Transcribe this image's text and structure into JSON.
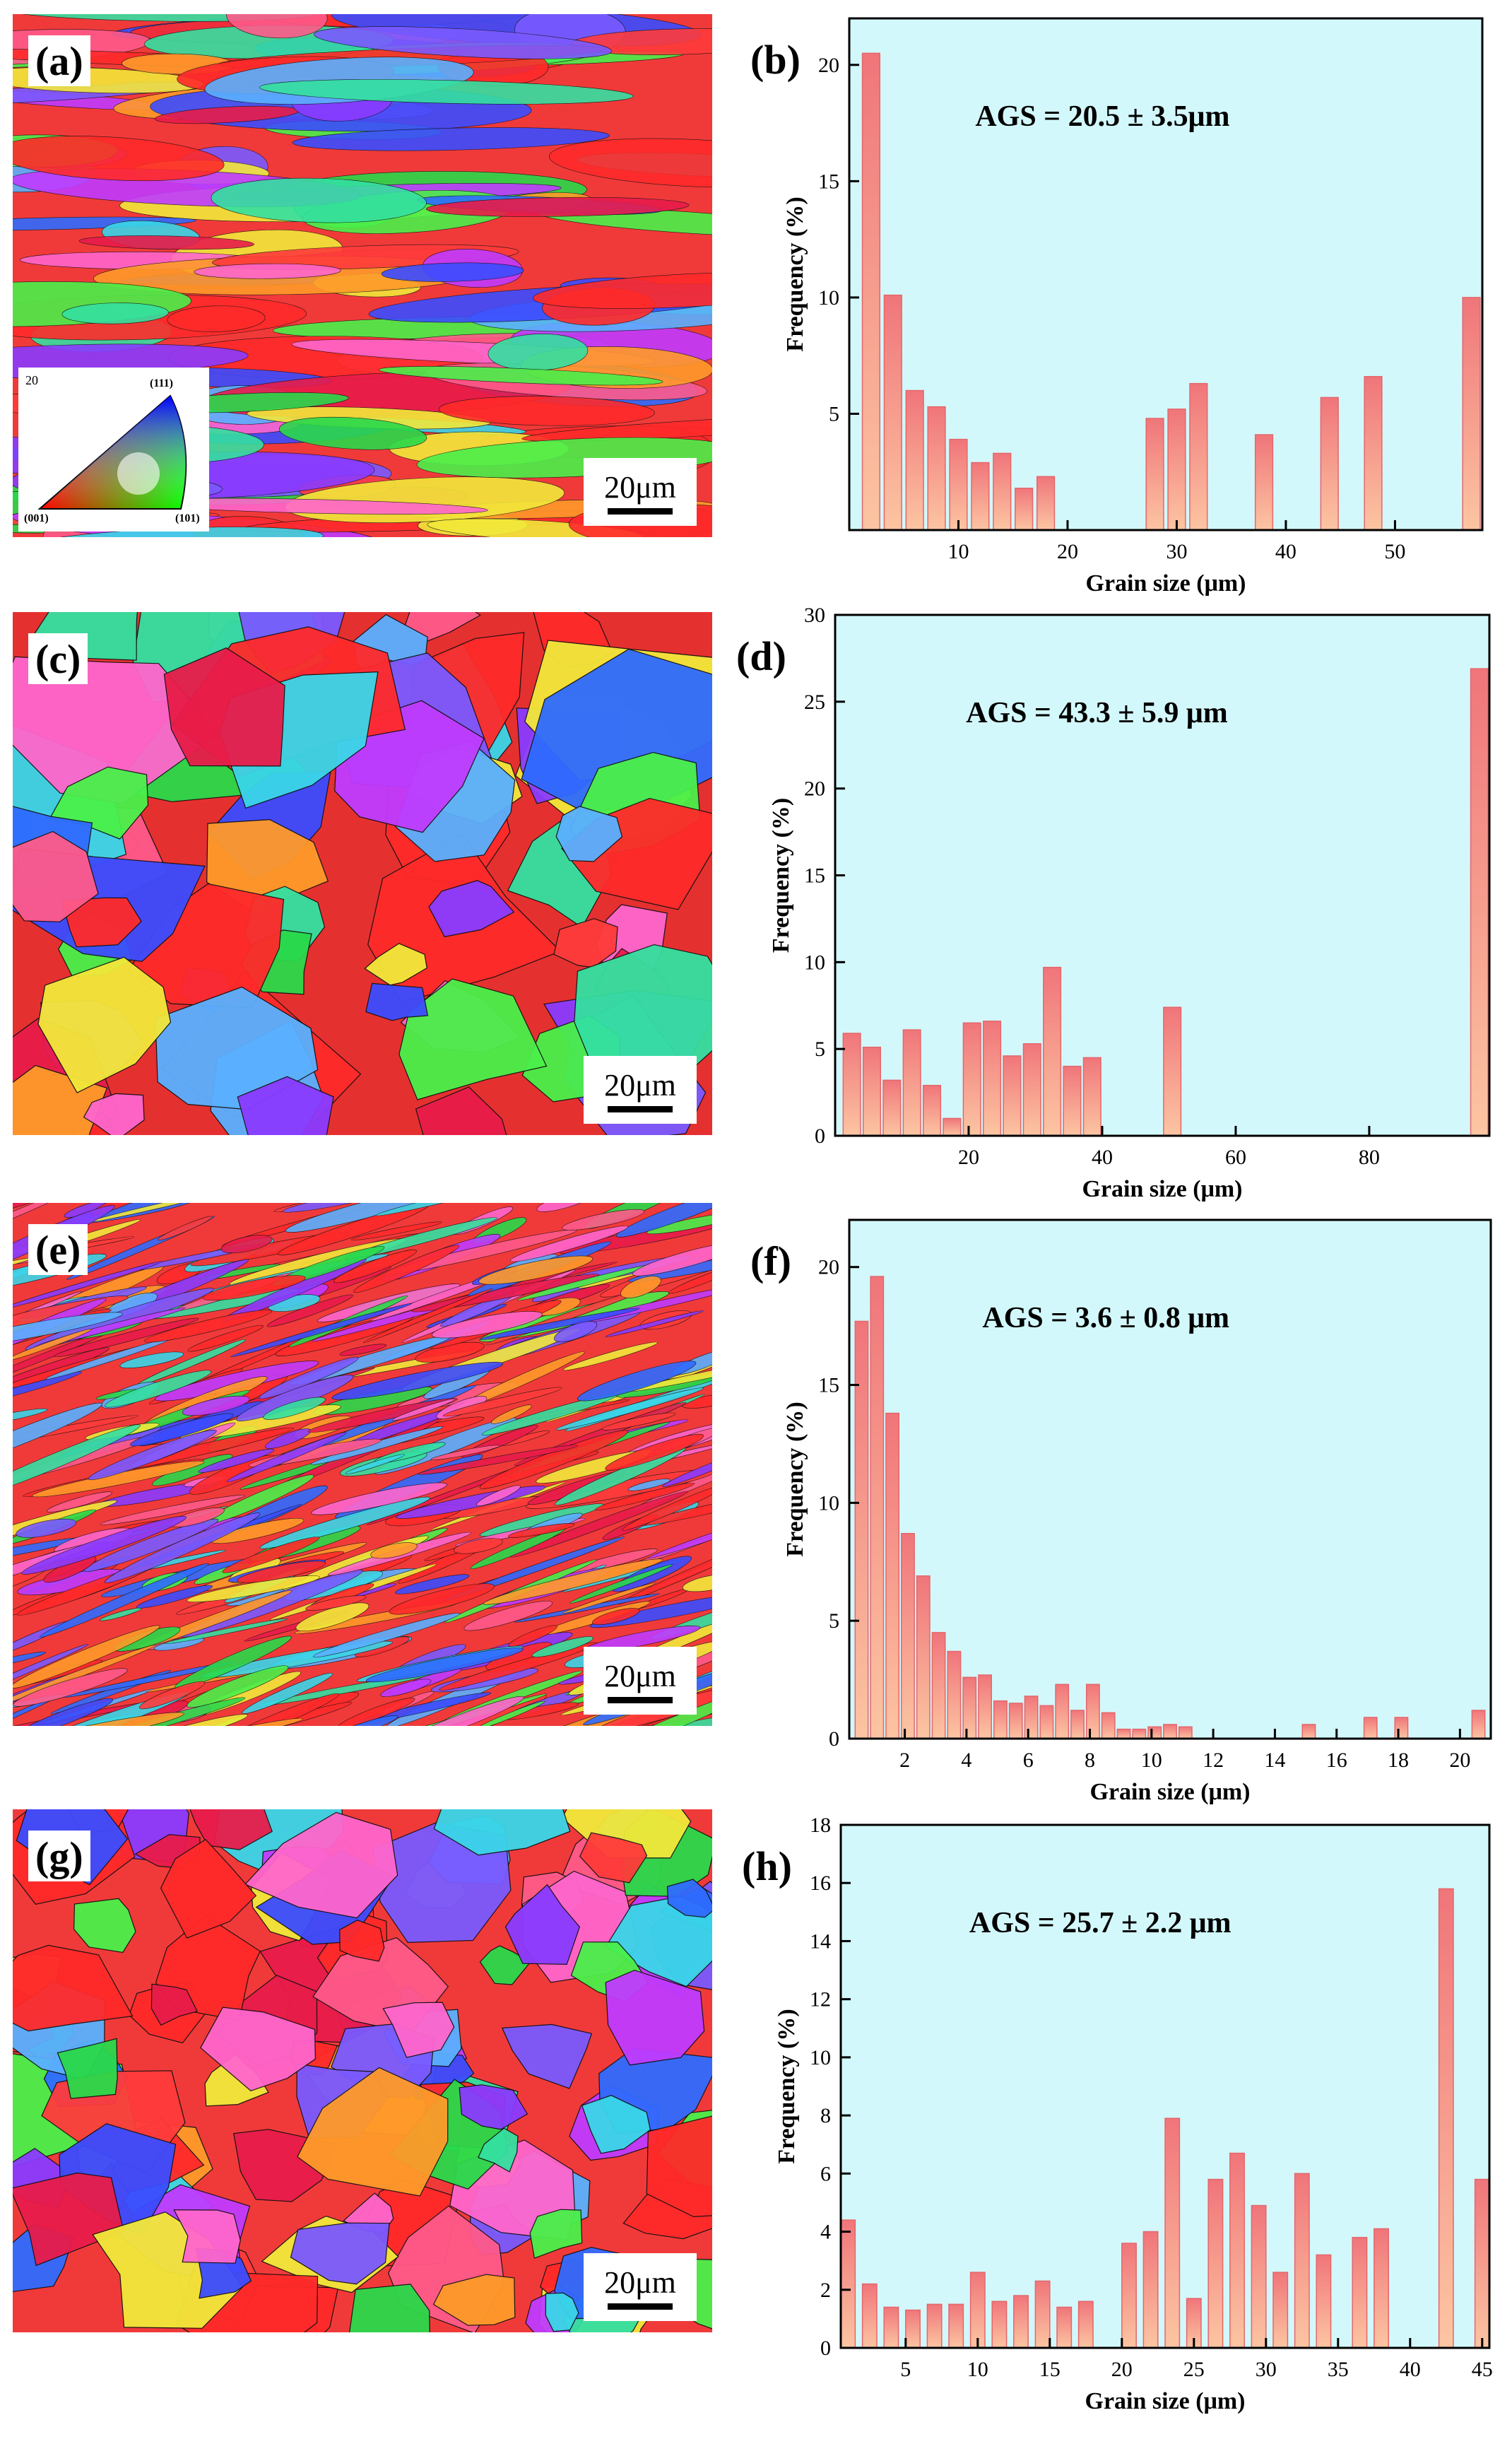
{
  "figure": {
    "map_labels": [
      "(a)",
      "(c)",
      "(e)",
      "(g)"
    ],
    "scale_bar_text": "20μm",
    "ipf_key": {
      "corner_001": "(001)",
      "corner_111": "(111)",
      "corner_101": "(101)",
      "header_value": "20"
    }
  },
  "colors": {
    "plot_bg": "#d3f8fb",
    "bar_top": "#f0757a",
    "bar_bottom": "#fcc5a2",
    "bar_stroke": "#e4676c"
  },
  "chart_data": [
    {
      "type": "bar",
      "panel": "(b)",
      "annotation": "AGS = 20.5 ± 3.5μm",
      "xlabel": "Grain size (μm)",
      "ylabel": "Frequency (%)",
      "xlim": [
        0,
        58
      ],
      "ylim": [
        0,
        22
      ],
      "xticks": [
        10,
        20,
        30,
        40,
        50
      ],
      "yticks": [
        5,
        10,
        15,
        20
      ],
      "bar_width": 1.6,
      "x": [
        2,
        4,
        6,
        8,
        10,
        12,
        14,
        16,
        18,
        28,
        30,
        32,
        38,
        44,
        48,
        57
      ],
      "values": [
        20.5,
        10.1,
        6.0,
        5.3,
        3.9,
        2.9,
        3.3,
        1.8,
        2.3,
        4.8,
        5.2,
        6.3,
        4.1,
        5.7,
        6.6,
        10.0
      ]
    },
    {
      "type": "bar",
      "panel": "(d)",
      "annotation": "AGS = 43.3 ± 5.9 μm",
      "xlabel": "Grain size (μm)",
      "ylabel": "Frequency (%)",
      "xlim": [
        0,
        98
      ],
      "ylim": [
        0,
        30
      ],
      "xticks": [
        20,
        40,
        60,
        80
      ],
      "yticks": [
        0,
        5,
        10,
        15,
        20,
        25,
        30
      ],
      "bar_width": 2.6,
      "x": [
        2.5,
        5.5,
        8.5,
        11.5,
        14.5,
        17.5,
        20.5,
        23.5,
        26.5,
        29.5,
        32.5,
        35.5,
        38.5,
        41.5,
        50.5,
        96.5
      ],
      "values": [
        5.9,
        5.1,
        3.2,
        6.1,
        2.9,
        1.0,
        6.5,
        6.6,
        4.6,
        5.3,
        9.7,
        4.0,
        4.5,
        0,
        7.4,
        26.9
      ]
    },
    {
      "type": "bar",
      "panel": "(f)",
      "annotation": "AGS = 3.6 ± 0.8 μm",
      "xlabel": "Grain size (μm)",
      "ylabel": "Frequency (%)",
      "xlim": [
        0.2,
        21
      ],
      "ylim": [
        0,
        22
      ],
      "xticks": [
        2,
        4,
        6,
        8,
        10,
        12,
        14,
        16,
        18,
        20
      ],
      "yticks": [
        0,
        5,
        10,
        15,
        20
      ],
      "bar_width": 0.42,
      "x": [
        0.6,
        1.1,
        1.6,
        2.1,
        2.6,
        3.1,
        3.6,
        4.1,
        4.6,
        5.1,
        5.6,
        6.1,
        6.6,
        7.1,
        7.6,
        8.1,
        8.6,
        9.1,
        9.6,
        10.1,
        10.6,
        11.1,
        11.6,
        12.1,
        12.6,
        13.1,
        13.6,
        14.1,
        15.1,
        16.1,
        17.1,
        18.1,
        19.1,
        20.6
      ],
      "values": [
        17.7,
        19.6,
        13.8,
        8.7,
        6.9,
        4.5,
        3.7,
        2.6,
        2.7,
        1.6,
        1.5,
        1.8,
        1.4,
        2.3,
        1.2,
        2.3,
        1.1,
        0.4,
        0.4,
        0.5,
        0.6,
        0.5,
        0,
        0,
        0,
        0,
        0,
        0,
        0.6,
        0,
        0.9,
        0.9,
        0,
        1.2
      ]
    },
    {
      "type": "bar",
      "panel": "(h)",
      "annotation": "AGS = 25.7 ± 2.2 μm",
      "xlabel": "Grain size (μm)",
      "ylabel": "Frequency (%)",
      "xlim": [
        0.5,
        45.5
      ],
      "ylim": [
        0,
        18
      ],
      "xticks": [
        5,
        10,
        15,
        20,
        25,
        30,
        35,
        40,
        45
      ],
      "yticks": [
        0,
        2,
        4,
        6,
        8,
        10,
        12,
        14,
        16,
        18
      ],
      "bar_width": 1.0,
      "x": [
        1,
        2.5,
        4,
        5.5,
        7,
        8.5,
        10,
        11.5,
        13,
        14.5,
        16,
        17.5,
        20.5,
        22,
        23.5,
        25,
        26.5,
        28,
        29.5,
        31,
        32.5,
        34,
        36.5,
        38,
        42.5,
        45
      ],
      "values": [
        4.4,
        2.2,
        1.4,
        1.3,
        1.5,
        1.5,
        2.6,
        1.6,
        1.8,
        2.3,
        1.4,
        1.6,
        3.6,
        4.0,
        7.9,
        1.7,
        5.8,
        6.7,
        4.9,
        2.6,
        6.0,
        3.2,
        3.8,
        4.1,
        15.8,
        5.8
      ]
    }
  ]
}
